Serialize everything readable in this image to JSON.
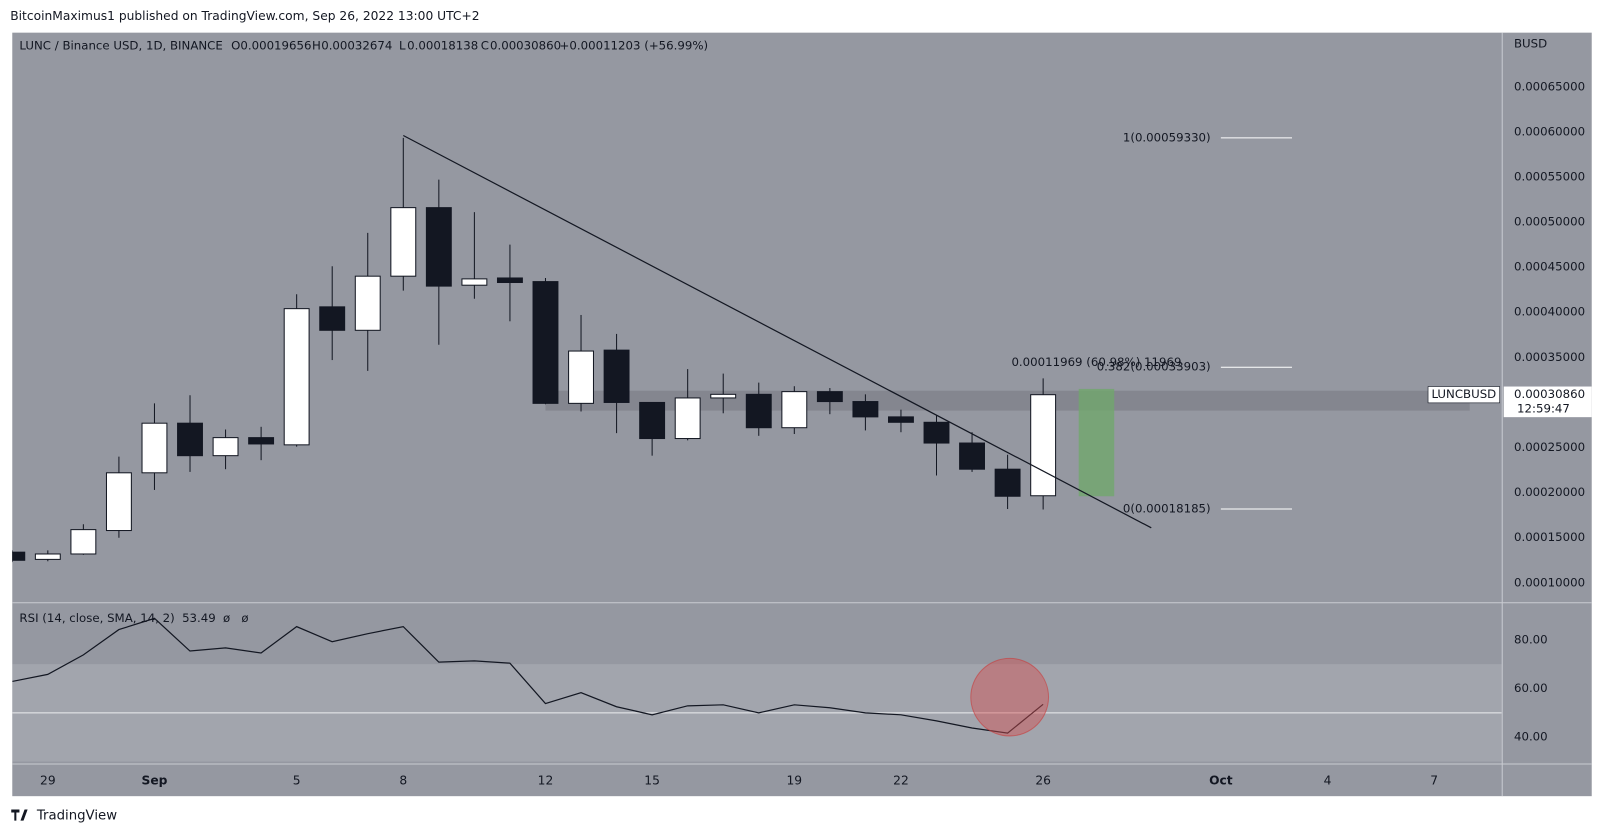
{
  "header": {
    "title": "BitcoinMaximus1 published on TradingView.com, Sep 26, 2022 13:00 UTC+2"
  },
  "footer": {
    "brand": "TradingView"
  },
  "chart_data": [
    {
      "type": "candlestick",
      "title": "LUNC / Binance USD, 1D, BINANCE",
      "legend": {
        "labels": [
          "O",
          "H",
          "L",
          "C"
        ],
        "values": [
          "0.00019656",
          "0.00032674",
          "0.00018138",
          "0.00030860"
        ],
        "change": "+0.00011203 (+56.99%)"
      },
      "y_axis_label": "BUSD",
      "symbol_label": "LUNCBUSD",
      "last_price_label": "0.00030860",
      "countdown": "12:59:47",
      "up_color": "#ffffff",
      "down_color": "#131722",
      "wick_color": "#131722",
      "x": [
        "2022-08-28",
        "2022-08-29",
        "2022-08-30",
        "2022-08-31",
        "2022-09-01",
        "2022-09-02",
        "2022-09-03",
        "2022-09-04",
        "2022-09-05",
        "2022-09-06",
        "2022-09-07",
        "2022-09-08",
        "2022-09-09",
        "2022-09-10",
        "2022-09-11",
        "2022-09-12",
        "2022-09-13",
        "2022-09-14",
        "2022-09-15",
        "2022-09-16",
        "2022-09-17",
        "2022-09-18",
        "2022-09-19",
        "2022-09-20",
        "2022-09-21",
        "2022-09-22",
        "2022-09-23",
        "2022-09-24",
        "2022-09-25",
        "2022-09-26"
      ],
      "open": [
        0.000134,
        0.000126,
        0.000132,
        0.000158,
        0.000222,
        0.000277,
        0.000241,
        0.000261,
        0.000253,
        0.000406,
        0.00038,
        0.00044,
        0.000516,
        0.00043,
        0.000438,
        0.000434,
        0.000299,
        0.000358,
        0.0003,
        0.00026,
        0.000305,
        0.000309,
        0.000272,
        0.000312,
        0.000301,
        0.000284,
        0.000278,
        0.000255,
        0.000226,
        0.00019656
      ],
      "high": [
        0.000136,
        0.000136,
        0.000165,
        0.00024,
        0.000299,
        0.000308,
        0.00027,
        0.000273,
        0.00042,
        0.000451,
        0.000488,
        0.0005933,
        0.000547,
        0.000511,
        0.000475,
        0.000438,
        0.000397,
        0.000376,
        0.0003,
        0.000337,
        0.000332,
        0.000322,
        0.000318,
        0.000316,
        0.000309,
        0.000292,
        0.000286,
        0.000267,
        0.000242,
        0.00032674
      ],
      "low": [
        0.000123,
        0.000124,
        0.000131,
        0.00015,
        0.000203,
        0.000223,
        0.000226,
        0.000236,
        0.000251,
        0.000347,
        0.000335,
        0.000424,
        0.000364,
        0.000415,
        0.00039,
        0.000298,
        0.00029,
        0.000266,
        0.000241,
        0.000258,
        0.000288,
        0.000263,
        0.000265,
        0.000287,
        0.000269,
        0.000267,
        0.000219,
        0.000223,
        0.00018185,
        0.00018138
      ],
      "close": [
        0.000125,
        0.000132,
        0.000159,
        0.000222,
        0.000277,
        0.000241,
        0.000261,
        0.000254,
        0.000404,
        0.00038,
        0.00044,
        0.000516,
        0.000429,
        0.000437,
        0.000433,
        0.000299,
        0.000357,
        0.0003,
        0.00026,
        0.000305,
        0.000309,
        0.000272,
        0.000312,
        0.000301,
        0.000284,
        0.000278,
        0.000255,
        0.000226,
        0.000196,
        0.0003086
      ],
      "xlim": [
        "2022-08-28T00:00",
        "2022-10-08T21:36"
      ],
      "xticks": [
        {
          "value": "2022-08-29",
          "label": "29"
        },
        {
          "value": "2022-09-01",
          "label": "Sep"
        },
        {
          "value": "2022-09-05",
          "label": "5"
        },
        {
          "value": "2022-09-08",
          "label": "8"
        },
        {
          "value": "2022-09-12",
          "label": "12"
        },
        {
          "value": "2022-09-15",
          "label": "15"
        },
        {
          "value": "2022-09-19",
          "label": "19"
        },
        {
          "value": "2022-09-22",
          "label": "22"
        },
        {
          "value": "2022-09-26",
          "label": "26"
        },
        {
          "value": "2022-10-01",
          "label": "Oct"
        },
        {
          "value": "2022-10-04",
          "label": "4"
        },
        {
          "value": "2022-10-07",
          "label": "7"
        }
      ],
      "ylim": [
        7.85e-05,
        0.00071
      ],
      "yticks": [
        {
          "value": 0.0001,
          "label": "0.00010000"
        },
        {
          "value": 0.00015,
          "label": "0.00015000"
        },
        {
          "value": 0.0002,
          "label": "0.00020000"
        },
        {
          "value": 0.00025,
          "label": "0.00025000"
        },
        {
          "value": 0.0003,
          "label": "0.00030000"
        },
        {
          "value": 0.00035,
          "label": "0.00035000"
        },
        {
          "value": 0.0004,
          "label": "0.00040000"
        },
        {
          "value": 0.00045,
          "label": "0.00045000"
        },
        {
          "value": 0.0005,
          "label": "0.00050000"
        },
        {
          "value": 0.00055,
          "label": "0.00055000"
        },
        {
          "value": 0.0006,
          "label": "0.00060000"
        },
        {
          "value": 0.00065,
          "label": "0.00065000"
        }
      ],
      "trendline": {
        "x": [
          "2022-09-08",
          "2022-09-29T01:00"
        ],
        "y": [
          0.000596,
          0.000161
        ],
        "color": "#131722"
      },
      "zone": {
        "x": [
          "2022-09-12",
          "2022-10-08"
        ],
        "y": [
          0.000291,
          0.000313
        ],
        "color": "#6f727b"
      },
      "fib": {
        "x": [
          "2022-10-01",
          "2022-10-03"
        ],
        "color": "#ffffff",
        "levels": [
          {
            "label": "1(0.00059330)",
            "value": 0.0005933
          },
          {
            "label": "0.382(0.00033903)",
            "value": 0.00033903
          },
          {
            "label": "0(0.00018185)",
            "value": 0.00018185
          }
        ]
      },
      "measure": {
        "label": "0.00011969 (60.98%) 11969",
        "x": [
          "2022-09-27",
          "2022-09-28"
        ],
        "y": [
          0.000196,
          0.000315
        ],
        "color": "#6fa86a"
      }
    },
    {
      "type": "line",
      "title": "RSI (14, close, SMA, 14, 2)",
      "value_text": "53.49",
      "extra": [
        "ø",
        "ø"
      ],
      "color": "#131722",
      "x": [
        "2022-08-28",
        "2022-08-29",
        "2022-08-30",
        "2022-08-31",
        "2022-09-01",
        "2022-09-02",
        "2022-09-03",
        "2022-09-04",
        "2022-09-05",
        "2022-09-06",
        "2022-09-07",
        "2022-09-08",
        "2022-09-09",
        "2022-09-10",
        "2022-09-11",
        "2022-09-12",
        "2022-09-13",
        "2022-09-14",
        "2022-09-15",
        "2022-09-16",
        "2022-09-17",
        "2022-09-18",
        "2022-09-19",
        "2022-09-20",
        "2022-09-21",
        "2022-09-22",
        "2022-09-23",
        "2022-09-24",
        "2022-09-25",
        "2022-09-26"
      ],
      "values": [
        62.9,
        65.8,
        73.8,
        84.2,
        88.8,
        75.4,
        76.7,
        74.6,
        85.4,
        79.2,
        82.5,
        85.4,
        70.8,
        71.3,
        70.4,
        53.8,
        58.3,
        52.5,
        49.2,
        52.9,
        53.3,
        50,
        53.3,
        52.1,
        50,
        49.2,
        46.7,
        43.8,
        41.7,
        53.49
      ],
      "ylim": [
        29.2,
        95
      ],
      "yticks": [
        {
          "value": 40,
          "label": "40.00"
        },
        {
          "value": 60,
          "label": "60.00"
        },
        {
          "value": 80,
          "label": "80.00"
        }
      ],
      "band": [
        30,
        70
      ],
      "midline": 50
    }
  ]
}
